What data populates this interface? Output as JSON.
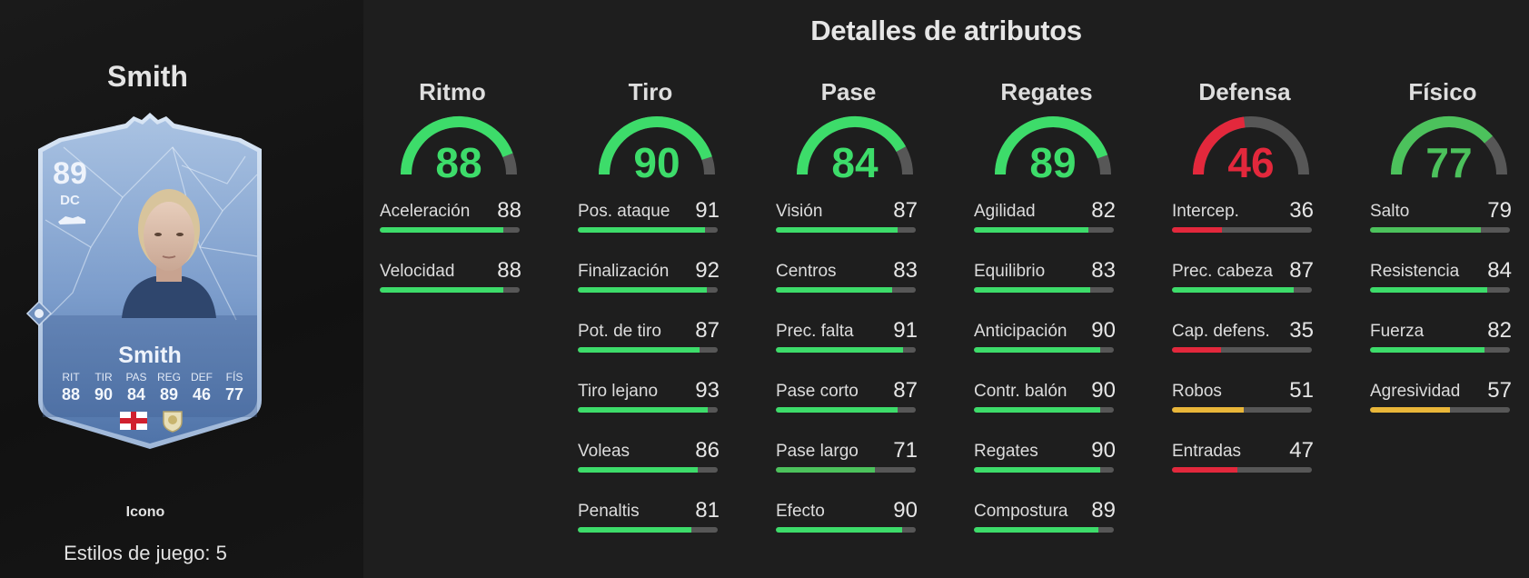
{
  "player": {
    "name": "Smith",
    "rating": "89",
    "position": "DC",
    "card_type": "Icono",
    "playstyles": "Estilos de juego: 5",
    "card_stats": [
      {
        "label": "RIT",
        "value": "88"
      },
      {
        "label": "TIR",
        "value": "90"
      },
      {
        "label": "PAS",
        "value": "84"
      },
      {
        "label": "REG",
        "value": "89"
      },
      {
        "label": "DEF",
        "value": "46"
      },
      {
        "label": "FÍS",
        "value": "77"
      }
    ],
    "nation_icon": "england-flag-icon",
    "club_icon": "icon-badge-icon"
  },
  "section_title": "Detalles de atributos",
  "colors": {
    "high": "#3ddc6a",
    "high_mid": "#4cc25c",
    "mid": "#e9b639",
    "low": "#e3283c",
    "track": "#575757"
  },
  "categories": [
    {
      "name": "Ritmo",
      "value": "88",
      "attributes": [
        {
          "name": "Aceleración",
          "value": "88"
        },
        {
          "name": "Velocidad",
          "value": "88"
        }
      ]
    },
    {
      "name": "Tiro",
      "value": "90",
      "attributes": [
        {
          "name": "Pos. ataque",
          "value": "91"
        },
        {
          "name": "Finalización",
          "value": "92"
        },
        {
          "name": "Pot. de tiro",
          "value": "87"
        },
        {
          "name": "Tiro lejano",
          "value": "93"
        },
        {
          "name": "Voleas",
          "value": "86"
        },
        {
          "name": "Penaltis",
          "value": "81"
        }
      ]
    },
    {
      "name": "Pase",
      "value": "84",
      "attributes": [
        {
          "name": "Visión",
          "value": "87"
        },
        {
          "name": "Centros",
          "value": "83"
        },
        {
          "name": "Prec. falta",
          "value": "91"
        },
        {
          "name": "Pase corto",
          "value": "87"
        },
        {
          "name": "Pase largo",
          "value": "71"
        },
        {
          "name": "Efecto",
          "value": "90"
        }
      ]
    },
    {
      "name": "Regates",
      "value": "89",
      "attributes": [
        {
          "name": "Agilidad",
          "value": "82"
        },
        {
          "name": "Equilibrio",
          "value": "83"
        },
        {
          "name": "Anticipación",
          "value": "90"
        },
        {
          "name": "Contr. balón",
          "value": "90"
        },
        {
          "name": "Regates",
          "value": "90"
        },
        {
          "name": "Compostura",
          "value": "89"
        }
      ]
    },
    {
      "name": "Defensa",
      "value": "46",
      "attributes": [
        {
          "name": "Intercep.",
          "value": "36"
        },
        {
          "name": "Prec. cabeza",
          "value": "87"
        },
        {
          "name": "Cap. defens.",
          "value": "35"
        },
        {
          "name": "Robos",
          "value": "51"
        },
        {
          "name": "Entradas",
          "value": "47"
        }
      ]
    },
    {
      "name": "Físico",
      "value": "77",
      "attributes": [
        {
          "name": "Salto",
          "value": "79"
        },
        {
          "name": "Resistencia",
          "value": "84"
        },
        {
          "name": "Fuerza",
          "value": "82"
        },
        {
          "name": "Agresividad",
          "value": "57"
        }
      ]
    }
  ]
}
